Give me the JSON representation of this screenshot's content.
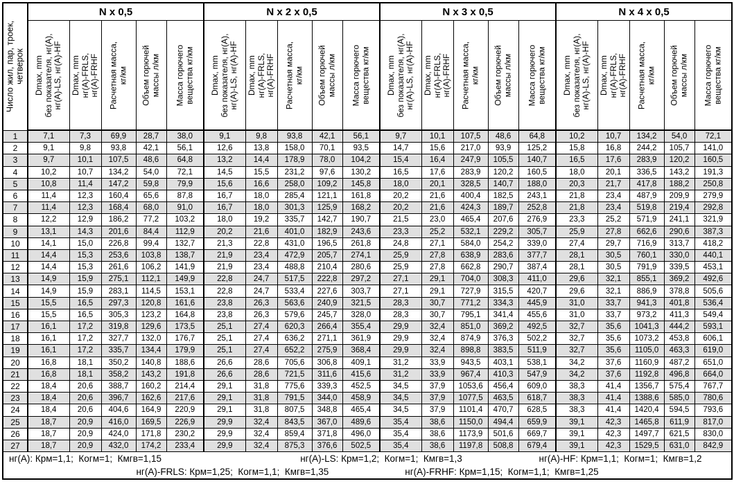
{
  "table": {
    "corner_header": "Число жил, пар, троек,\nчетверок",
    "groups": [
      "N x 0,5",
      "N x 2 x 0,5",
      "N x 3 x 0,5",
      "N x 4 x 0,5"
    ],
    "col_labels": [
      "Dmax, mm\nбез показателя, нг(А),\nнг(А)-LS, нг(А)-HF",
      "Dmax, mm\nнг(А)-FRLS,\nнг(А)-FRHF",
      "Расчетная масса,\nкг/км",
      "Объем горючей\nмассы л/км",
      "Масса горючего\nвещества кг/км"
    ],
    "rows": [
      [
        "1",
        "7,1",
        "7,3",
        "69,9",
        "28,7",
        "38,0",
        "9,1",
        "9,8",
        "93,8",
        "42,1",
        "56,1",
        "9,7",
        "10,1",
        "107,5",
        "48,6",
        "64,8",
        "10,2",
        "10,7",
        "134,2",
        "54,0",
        "72,1"
      ],
      [
        "2",
        "9,1",
        "9,8",
        "93,8",
        "42,1",
        "56,1",
        "12,6",
        "13,8",
        "158,0",
        "70,1",
        "93,5",
        "14,7",
        "15,6",
        "217,0",
        "93,9",
        "125,2",
        "15,8",
        "16,8",
        "244,2",
        "105,7",
        "141,0"
      ],
      [
        "3",
        "9,7",
        "10,1",
        "107,5",
        "48,6",
        "64,8",
        "13,2",
        "14,4",
        "178,9",
        "78,0",
        "104,2",
        "15,4",
        "16,4",
        "247,9",
        "105,5",
        "140,7",
        "16,5",
        "17,6",
        "283,9",
        "120,2",
        "160,5"
      ],
      [
        "4",
        "10,2",
        "10,7",
        "134,2",
        "54,0",
        "72,1",
        "14,5",
        "15,5",
        "231,2",
        "97,6",
        "130,2",
        "16,5",
        "17,6",
        "283,9",
        "120,2",
        "160,5",
        "18,0",
        "20,1",
        "336,5",
        "143,2",
        "191,3"
      ],
      [
        "5",
        "10,8",
        "11,4",
        "147,2",
        "59,8",
        "79,9",
        "15,6",
        "16,6",
        "258,0",
        "109,2",
        "145,8",
        "18,0",
        "20,1",
        "328,5",
        "140,7",
        "188,0",
        "20,3",
        "21,7",
        "417,8",
        "188,2",
        "250,8"
      ],
      [
        "6",
        "11,4",
        "12,3",
        "160,4",
        "65,6",
        "87,8",
        "16,7",
        "18,0",
        "285,4",
        "121,1",
        "161,8",
        "20,2",
        "21,6",
        "400,4",
        "182,5",
        "243,1",
        "21,8",
        "23,4",
        "487,9",
        "209,9",
        "279,9"
      ],
      [
        "7",
        "11,4",
        "12,3",
        "168,4",
        "68,0",
        "91,0",
        "16,7",
        "18,0",
        "301,3",
        "125,9",
        "168,2",
        "20,2",
        "21,6",
        "424,3",
        "189,7",
        "252,8",
        "21,8",
        "23,4",
        "519,8",
        "219,4",
        "292,8"
      ],
      [
        "8",
        "12,2",
        "12,9",
        "186,2",
        "77,2",
        "103,2",
        "18,0",
        "19,2",
        "335,7",
        "142,7",
        "190,7",
        "21,5",
        "23,0",
        "465,4",
        "207,6",
        "276,9",
        "23,3",
        "25,2",
        "571,9",
        "241,1",
        "321,9"
      ],
      [
        "9",
        "13,1",
        "14,3",
        "201,6",
        "84,4",
        "112,9",
        "20,2",
        "21,6",
        "401,0",
        "182,9",
        "243,6",
        "23,3",
        "25,2",
        "532,1",
        "229,2",
        "305,7",
        "25,9",
        "27,8",
        "662,6",
        "290,6",
        "387,3"
      ],
      [
        "10",
        "14,1",
        "15,0",
        "226,8",
        "99,4",
        "132,7",
        "21,3",
        "22,8",
        "431,0",
        "196,5",
        "261,8",
        "24,8",
        "27,1",
        "584,0",
        "254,2",
        "339,0",
        "27,4",
        "29,7",
        "716,9",
        "313,7",
        "418,2"
      ],
      [
        "11",
        "14,4",
        "15,3",
        "253,6",
        "103,8",
        "138,7",
        "21,9",
        "23,4",
        "472,9",
        "205,7",
        "274,1",
        "25,9",
        "27,8",
        "638,9",
        "283,6",
        "377,7",
        "28,1",
        "30,5",
        "760,1",
        "330,0",
        "440,1"
      ],
      [
        "12",
        "14,4",
        "15,3",
        "261,6",
        "106,2",
        "141,9",
        "21,9",
        "23,4",
        "488,8",
        "210,4",
        "280,6",
        "25,9",
        "27,8",
        "662,8",
        "290,7",
        "387,4",
        "28,1",
        "30,5",
        "791,9",
        "339,5",
        "453,1"
      ],
      [
        "13",
        "14,9",
        "15,9",
        "275,1",
        "112,1",
        "149,9",
        "22,8",
        "24,7",
        "517,5",
        "222,8",
        "297,2",
        "27,1",
        "29,1",
        "704,0",
        "308,3",
        "411,0",
        "29,6",
        "32,1",
        "855,1",
        "369,2",
        "492,6"
      ],
      [
        "14",
        "14,9",
        "15,9",
        "283,1",
        "114,5",
        "153,1",
        "22,8",
        "24,7",
        "533,4",
        "227,6",
        "303,7",
        "27,1",
        "29,1",
        "727,9",
        "315,5",
        "420,7",
        "29,6",
        "32,1",
        "886,9",
        "378,8",
        "505,6"
      ],
      [
        "15",
        "15,5",
        "16,5",
        "297,3",
        "120,8",
        "161,6",
        "23,8",
        "26,3",
        "563,6",
        "240,9",
        "321,5",
        "28,3",
        "30,7",
        "771,2",
        "334,3",
        "445,9",
        "31,0",
        "33,7",
        "941,3",
        "401,8",
        "536,4"
      ],
      [
        "16",
        "15,5",
        "16,5",
        "305,3",
        "123,2",
        "164,8",
        "23,8",
        "26,3",
        "579,6",
        "245,7",
        "328,0",
        "28,3",
        "30,7",
        "795,1",
        "341,4",
        "455,6",
        "31,0",
        "33,7",
        "973,2",
        "411,3",
        "549,4"
      ],
      [
        "17",
        "16,1",
        "17,2",
        "319,8",
        "129,6",
        "173,5",
        "25,1",
        "27,4",
        "620,3",
        "266,4",
        "355,4",
        "29,9",
        "32,4",
        "851,0",
        "369,2",
        "492,5",
        "32,7",
        "35,6",
        "1041,3",
        "444,2",
        "593,1"
      ],
      [
        "18",
        "16,1",
        "17,2",
        "327,7",
        "132,0",
        "176,7",
        "25,1",
        "27,4",
        "636,2",
        "271,1",
        "361,9",
        "29,9",
        "32,4",
        "874,9",
        "376,3",
        "502,2",
        "32,7",
        "35,6",
        "1073,2",
        "453,8",
        "606,1"
      ],
      [
        "19",
        "16,1",
        "17,2",
        "335,7",
        "134,4",
        "179,9",
        "25,1",
        "27,4",
        "652,2",
        "275,9",
        "368,4",
        "29,9",
        "32,4",
        "898,8",
        "383,5",
        "511,9",
        "32,7",
        "35,6",
        "1105,0",
        "463,3",
        "619,0"
      ],
      [
        "20",
        "16,8",
        "18,1",
        "350,2",
        "140,8",
        "188,6",
        "26,6",
        "28,6",
        "705,6",
        "306,8",
        "409,1",
        "31,2",
        "33,9",
        "943,5",
        "403,1",
        "538,1",
        "34,2",
        "37,6",
        "1160,9",
        "487,2",
        "651,0"
      ],
      [
        "21",
        "16,8",
        "18,1",
        "358,2",
        "143,2",
        "191,8",
        "26,6",
        "28,6",
        "721,5",
        "311,6",
        "415,6",
        "31,2",
        "33,9",
        "967,4",
        "410,3",
        "547,9",
        "34,2",
        "37,6",
        "1192,8",
        "496,8",
        "664,0"
      ],
      [
        "22",
        "18,4",
        "20,6",
        "388,7",
        "160,2",
        "214,4",
        "29,1",
        "31,8",
        "775,6",
        "339,3",
        "452,5",
        "34,5",
        "37,9",
        "1053,6",
        "456,4",
        "609,0",
        "38,3",
        "41,4",
        "1356,7",
        "575,4",
        "767,7"
      ],
      [
        "23",
        "18,4",
        "20,6",
        "396,7",
        "162,6",
        "217,6",
        "29,1",
        "31,8",
        "791,5",
        "344,0",
        "458,9",
        "34,5",
        "37,9",
        "1077,5",
        "463,5",
        "618,7",
        "38,3",
        "41,4",
        "1388,6",
        "585,0",
        "780,6"
      ],
      [
        "24",
        "18,4",
        "20,6",
        "404,6",
        "164,9",
        "220,9",
        "29,1",
        "31,8",
        "807,5",
        "348,8",
        "465,4",
        "34,5",
        "37,9",
        "1101,4",
        "470,7",
        "628,5",
        "38,3",
        "41,4",
        "1420,4",
        "594,5",
        "793,6"
      ],
      [
        "25",
        "18,7",
        "20,9",
        "416,0",
        "169,5",
        "226,9",
        "29,9",
        "32,4",
        "843,5",
        "367,0",
        "489,6",
        "35,4",
        "38,6",
        "1150,0",
        "494,4",
        "659,9",
        "39,1",
        "42,3",
        "1465,8",
        "611,9",
        "817,0"
      ],
      [
        "26",
        "18,7",
        "20,9",
        "424,0",
        "171,8",
        "230,2",
        "29,9",
        "32,4",
        "859,4",
        "371,8",
        "496,0",
        "35,4",
        "38,6",
        "1173,9",
        "501,6",
        "669,7",
        "39,1",
        "42,3",
        "1497,7",
        "621,5",
        "830,0"
      ],
      [
        "27",
        "18,7",
        "20,9",
        "432,0",
        "174,2",
        "233,4",
        "29,9",
        "32,4",
        "875,3",
        "376,6",
        "502,5",
        "35,4",
        "38,6",
        "1197,8",
        "508,8",
        "679,4",
        "39,1",
        "42,3",
        "1529,5",
        "631,0",
        "842,9"
      ]
    ],
    "footnotes": {
      "line1": [
        "нг(А): Крм=1,1;  Когм=1;  Кмгв=1,15",
        "нг(А)-LS: Крм=1,2;  Когм=1;  Кмгв=1,3",
        "нг(А)-HF: Крм=1,1;  Когм=1;  Кмгв=1,2"
      ],
      "line2": [
        "нг(А)-FRLS: Крм=1,25;  Когм=1,1;  Кмгв=1,35",
        "нг(А)-FRHF: Крм=1,15;  Когм=1,1;  Кмгв=1,25"
      ]
    }
  }
}
